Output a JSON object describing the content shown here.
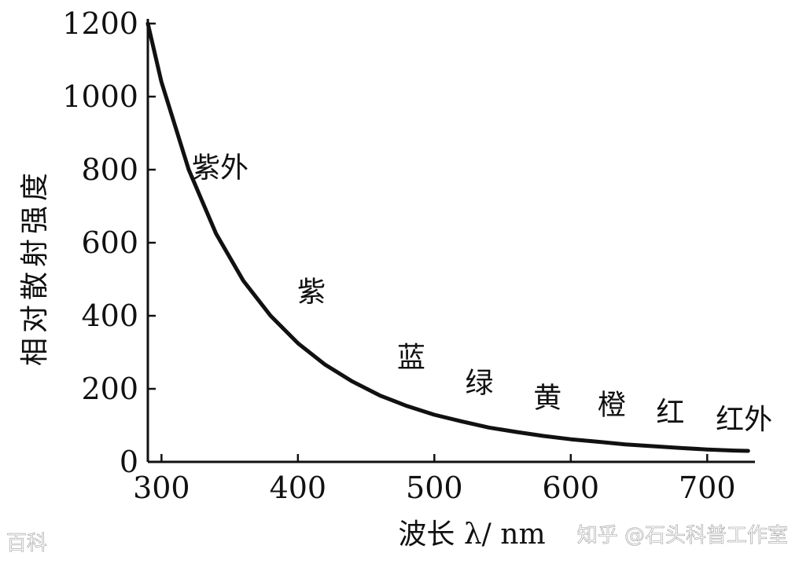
{
  "chart_data": {
    "type": "line",
    "xlabel": "波长 λ/ nm",
    "ylabel": "相对散射强度",
    "x_ticks": [
      "300",
      "400",
      "500",
      "600",
      "700"
    ],
    "y_ticks": [
      "0",
      "200",
      "400",
      "600",
      "800",
      "1000",
      "1200"
    ],
    "xlim": [
      290,
      735
    ],
    "ylim": [
      0,
      1200
    ],
    "grid": false,
    "series": [
      {
        "x": [
          290,
          300,
          320,
          340,
          360,
          380,
          400,
          420,
          440,
          460,
          480,
          500,
          520,
          540,
          560,
          580,
          600,
          620,
          640,
          660,
          680,
          700,
          720,
          730
        ],
        "y": [
          1200,
          1040,
          800,
          625,
          496,
          400,
          325,
          266,
          220,
          182,
          153,
          129,
          111,
          94,
          82,
          71,
          62,
          55,
          48,
          43,
          38,
          34,
          31,
          30
        ]
      }
    ],
    "annotations": [
      {
        "text": "紫外",
        "x": 343,
        "y": 780
      },
      {
        "text": "紫",
        "x": 410,
        "y": 440
      },
      {
        "text": "蓝",
        "x": 483,
        "y": 260
      },
      {
        "text": "绿",
        "x": 533,
        "y": 190
      },
      {
        "text": "黄",
        "x": 583,
        "y": 150
      },
      {
        "text": "橙",
        "x": 630,
        "y": 130
      },
      {
        "text": "红",
        "x": 673,
        "y": 110
      },
      {
        "text": "红外",
        "x": 727,
        "y": 90
      }
    ]
  },
  "watermarks": {
    "left": "百科",
    "right": "知乎 @石头科普工作室"
  }
}
